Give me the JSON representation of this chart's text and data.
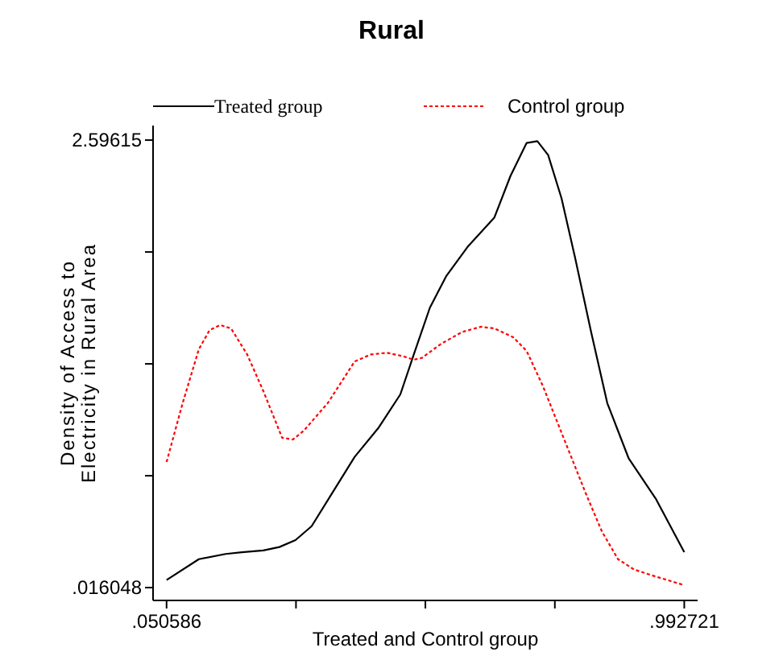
{
  "chart_data": {
    "type": "line",
    "title": "Rural",
    "xlabel": "Treated and Control group",
    "ylabel": "Density of Access to\nElectricity in Rural Area",
    "xlim": [
      0.026,
      1.017
    ],
    "ylim": [
      -0.058,
      2.68
    ],
    "xticks": [
      {
        "value": 0.050586,
        "label": ".050586"
      },
      {
        "value": 0.2861,
        "label": null
      },
      {
        "value": 0.5216,
        "label": null
      },
      {
        "value": 0.7572,
        "label": null
      },
      {
        "value": 0.992721,
        "label": ".992721"
      }
    ],
    "yticks": [
      {
        "value": 0.016048,
        "label": ".016048"
      },
      {
        "value": 0.661,
        "label": null
      },
      {
        "value": 1.306,
        "label": null
      },
      {
        "value": 1.951,
        "label": null
      },
      {
        "value": 2.59615,
        "label": "2.59615"
      }
    ],
    "grid": false,
    "legend": "top",
    "marker": "none",
    "series": [
      {
        "name": "Treated group",
        "color": "#000000",
        "line_style": "solid",
        "x": [
          0.0506,
          0.1093,
          0.1582,
          0.1875,
          0.2266,
          0.256,
          0.2853,
          0.3146,
          0.3538,
          0.3929,
          0.4369,
          0.476,
          0.5005,
          0.5298,
          0.5592,
          0.5983,
          0.6472,
          0.6765,
          0.7059,
          0.7254,
          0.745,
          0.7694,
          0.7939,
          0.8232,
          0.8526,
          0.8917,
          0.9406,
          0.9927
        ],
        "values": [
          0.06,
          0.18,
          0.21,
          0.22,
          0.23,
          0.25,
          0.29,
          0.37,
          0.57,
          0.77,
          0.94,
          1.13,
          1.36,
          1.63,
          1.81,
          1.98,
          2.15,
          2.39,
          2.58,
          2.59,
          2.51,
          2.26,
          1.92,
          1.49,
          1.08,
          0.76,
          0.53,
          0.22
        ]
      },
      {
        "name": "Control group",
        "color": "#ff0000",
        "line_style": "dotted",
        "x": [
          0.0506,
          0.0799,
          0.1093,
          0.1288,
          0.1484,
          0.168,
          0.1973,
          0.2266,
          0.2609,
          0.2804,
          0.3,
          0.344,
          0.3929,
          0.4222,
          0.4516,
          0.4809,
          0.5005,
          0.5151,
          0.5494,
          0.5885,
          0.6227,
          0.6472,
          0.6814,
          0.7059,
          0.7352,
          0.7743,
          0.8134,
          0.8428,
          0.8721,
          0.9015,
          0.9406,
          0.9927
        ],
        "values": [
          0.74,
          1.08,
          1.39,
          1.5,
          1.53,
          1.51,
          1.36,
          1.15,
          0.88,
          0.87,
          0.92,
          1.08,
          1.32,
          1.36,
          1.37,
          1.35,
          1.33,
          1.34,
          1.42,
          1.49,
          1.52,
          1.51,
          1.46,
          1.38,
          1.18,
          0.87,
          0.56,
          0.34,
          0.18,
          0.12,
          0.08,
          0.03
        ]
      }
    ]
  }
}
